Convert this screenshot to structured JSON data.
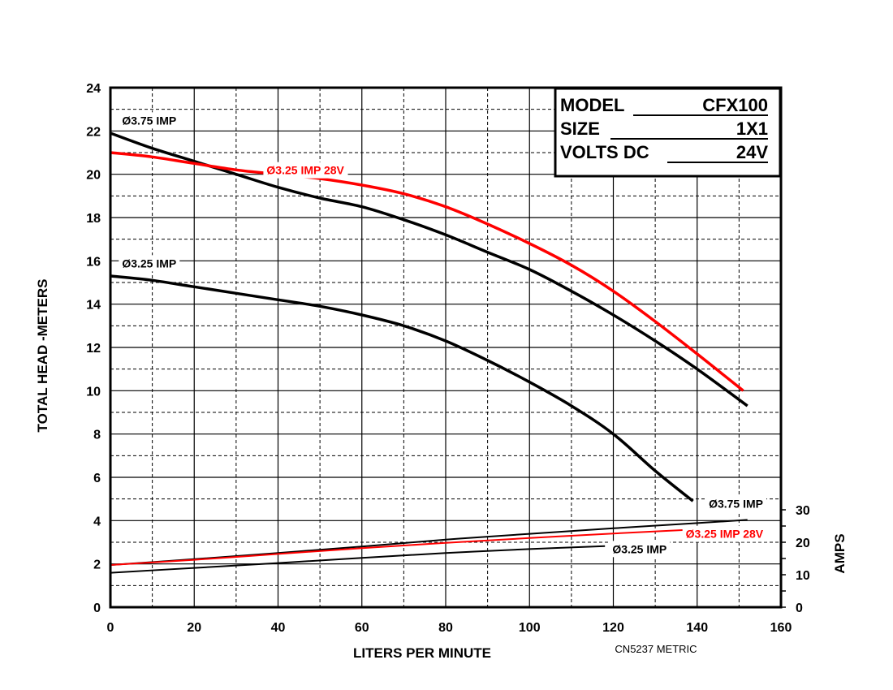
{
  "chart_data": {
    "type": "line",
    "xlabel": "LITERS PER MINUTE",
    "ylabel": "TOTAL HEAD -METERS",
    "y2label": "AMPS",
    "xlim": [
      0,
      160
    ],
    "ylim": [
      0,
      24
    ],
    "y2lim": [
      0,
      30
    ],
    "x_ticks": [
      "0",
      "20",
      "40",
      "60",
      "80",
      "100",
      "120",
      "140",
      "160"
    ],
    "y_ticks": [
      "0",
      "2",
      "4",
      "6",
      "8",
      "10",
      "12",
      "14",
      "16",
      "18",
      "20",
      "22",
      "24"
    ],
    "y2_ticks": [
      "0",
      "10",
      "20",
      "30"
    ],
    "grid": true,
    "reference": "CN5237 METRIC",
    "info_box": {
      "rows": [
        {
          "label": "MODEL",
          "value": "CFX100"
        },
        {
          "label": "SIZE",
          "value": "1X1"
        },
        {
          "label": "VOLTS DC",
          "value": "24V"
        }
      ]
    },
    "series": [
      {
        "name": "Ø3.75 IMP",
        "axis": "head",
        "color": "#000000",
        "x": [
          0,
          10,
          20,
          30,
          40,
          50,
          60,
          70,
          80,
          90,
          100,
          110,
          120,
          130,
          140,
          152
        ],
        "y": [
          21.9,
          21.2,
          20.6,
          20.0,
          19.4,
          18.9,
          18.5,
          17.9,
          17.2,
          16.4,
          15.6,
          14.6,
          13.5,
          12.3,
          11.0,
          9.3
        ]
      },
      {
        "name": "Ø3.25 IMP 28V",
        "axis": "head",
        "color": "#ff0000",
        "x": [
          0,
          10,
          20,
          30,
          40,
          50,
          60,
          70,
          80,
          90,
          100,
          110,
          120,
          130,
          140,
          151
        ],
        "y": [
          21.0,
          20.8,
          20.5,
          20.2,
          20.0,
          19.8,
          19.5,
          19.1,
          18.5,
          17.7,
          16.8,
          15.8,
          14.6,
          13.2,
          11.7,
          10.0
        ]
      },
      {
        "name": "Ø3.25 IMP",
        "axis": "head",
        "color": "#000000",
        "x": [
          0,
          10,
          20,
          30,
          40,
          50,
          60,
          70,
          80,
          90,
          100,
          110,
          120,
          130,
          139
        ],
        "y": [
          15.3,
          15.1,
          14.8,
          14.5,
          14.2,
          13.9,
          13.5,
          13.0,
          12.3,
          11.4,
          10.4,
          9.3,
          8.0,
          6.3,
          4.9
        ]
      },
      {
        "name": "Ø3.75 IMP",
        "axis": "amps",
        "color": "#000000",
        "x": [
          0,
          20,
          40,
          60,
          80,
          100,
          120,
          140,
          152
        ],
        "y": [
          13.0,
          14.8,
          16.7,
          18.7,
          20.8,
          22.6,
          24.3,
          25.9,
          26.9
        ]
      },
      {
        "name": "Ø3.25 IMP 28V",
        "axis": "amps",
        "color": "#ff0000",
        "x": [
          0,
          20,
          40,
          60,
          80,
          100,
          120,
          139
        ],
        "y": [
          13.0,
          14.6,
          16.4,
          18.2,
          19.8,
          21.3,
          22.7,
          23.9
        ]
      },
      {
        "name": "Ø3.25 IMP",
        "axis": "amps",
        "color": "#000000",
        "x": [
          0,
          20,
          40,
          60,
          80,
          100,
          118
        ],
        "y": [
          10.6,
          12.1,
          13.6,
          15.2,
          16.7,
          17.9,
          18.8
        ]
      }
    ],
    "annotations": [
      {
        "text": "Ø3.75 IMP",
        "color": "#000000",
        "at_x": 2,
        "at_y": 22.3
      },
      {
        "text": "Ø3.25 IMP 28V",
        "color": "#ff0000",
        "at_x": 36.5,
        "at_y": 20.0
      },
      {
        "text": "Ø3.25 IMP",
        "color": "#000000",
        "at_x": 2,
        "at_y": 15.7
      },
      {
        "text": "Ø3.75 IMP",
        "color": "#000000",
        "at_x": 142,
        "at_y": 4.6
      },
      {
        "text": "Ø3.25 IMP 28V",
        "color": "#ff0000",
        "at_x": 136.5,
        "at_y": 3.2
      },
      {
        "text": "Ø3.25 IMP",
        "color": "#000000",
        "at_x": 119,
        "at_y": 2.5
      }
    ]
  }
}
